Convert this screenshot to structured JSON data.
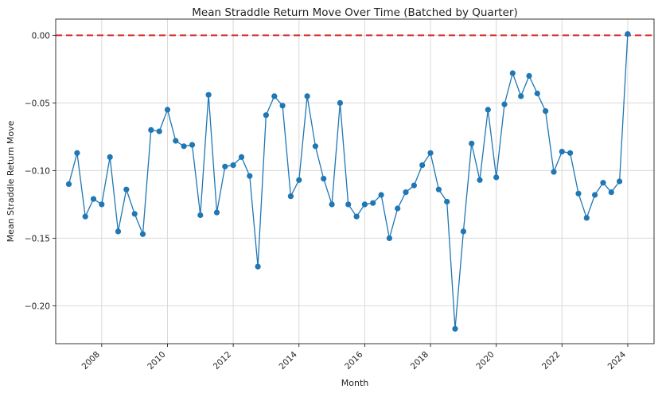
{
  "chart_data": {
    "type": "line",
    "title": "Mean Straddle Return Move Over Time (Batched by Quarter)",
    "xlabel": "Month",
    "ylabel": "Mean Straddle Return Move",
    "xlim": [
      2006.6,
      2024.8
    ],
    "ylim": [
      -0.228,
      0.012
    ],
    "x_ticks": [
      2008,
      2010,
      2012,
      2014,
      2016,
      2018,
      2020,
      2022,
      2024
    ],
    "y_ticks": [
      0.0,
      -0.05,
      -0.1,
      -0.15,
      -0.2
    ],
    "y_tick_labels": [
      "0.00",
      "−0.05",
      "−0.10",
      "−0.15",
      "−0.20"
    ],
    "grid": true,
    "reference_line": {
      "y": 0.0,
      "color": "#d62728",
      "style": "dashed"
    },
    "series_color": "#1f77b4",
    "series": [
      {
        "x": [
          2007.0,
          2007.25,
          2007.5,
          2007.75,
          2008.0,
          2008.25,
          2008.5,
          2008.75,
          2009.0,
          2009.25,
          2009.5,
          2009.75,
          2010.0,
          2010.25,
          2010.5,
          2010.75,
          2011.0,
          2011.25,
          2011.5,
          2011.75,
          2012.0,
          2012.25,
          2012.5,
          2012.75,
          2013.0,
          2013.25,
          2013.5,
          2013.75,
          2014.0,
          2014.25,
          2014.5,
          2014.75,
          2015.0,
          2015.25,
          2015.5,
          2015.75,
          2016.0,
          2016.25,
          2016.5,
          2016.75,
          2017.0,
          2017.25,
          2017.5,
          2017.75,
          2018.0,
          2018.25,
          2018.5,
          2018.75,
          2019.0,
          2019.25,
          2019.5,
          2019.75,
          2020.0,
          2020.25,
          2020.5,
          2020.75,
          2021.0,
          2021.25,
          2021.5,
          2021.75,
          2022.0,
          2022.25,
          2022.5,
          2022.75,
          2023.0,
          2023.25,
          2023.5,
          2023.75,
          2024.0
        ],
        "y": [
          -0.11,
          -0.087,
          -0.134,
          -0.121,
          -0.125,
          -0.09,
          -0.145,
          -0.114,
          -0.132,
          -0.147,
          -0.07,
          -0.071,
          -0.055,
          -0.078,
          -0.082,
          -0.081,
          -0.133,
          -0.044,
          -0.131,
          -0.097,
          -0.096,
          -0.09,
          -0.104,
          -0.171,
          -0.059,
          -0.045,
          -0.052,
          -0.119,
          -0.107,
          -0.045,
          -0.082,
          -0.106,
          -0.125,
          -0.05,
          -0.125,
          -0.134,
          -0.125,
          -0.124,
          -0.118,
          -0.15,
          -0.128,
          -0.116,
          -0.111,
          -0.096,
          -0.087,
          -0.114,
          -0.123,
          -0.217,
          -0.145,
          -0.08,
          -0.107,
          -0.055,
          -0.105,
          -0.051,
          -0.028,
          -0.045,
          -0.03,
          -0.043,
          -0.056,
          -0.101,
          -0.086,
          -0.087,
          -0.117,
          -0.135,
          -0.118,
          -0.109,
          -0.116,
          -0.108,
          0.001
        ]
      }
    ]
  }
}
